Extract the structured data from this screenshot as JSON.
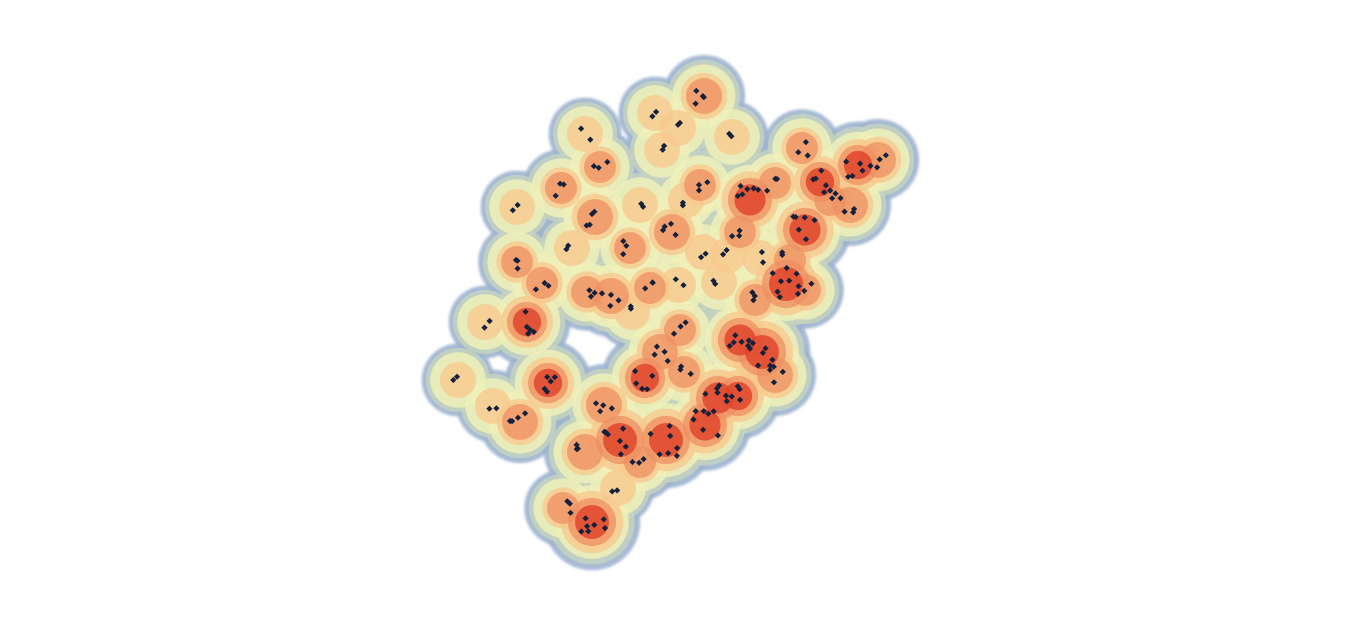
{
  "map": {
    "type": "point-density-heatmap",
    "background": "#ffffff",
    "ramp": [
      "#9fb4cf",
      "#c4d2c0",
      "#eef0b8",
      "#f7c98f",
      "#ef8f62",
      "#e0452c"
    ],
    "marker_color": "#14213d"
  }
}
